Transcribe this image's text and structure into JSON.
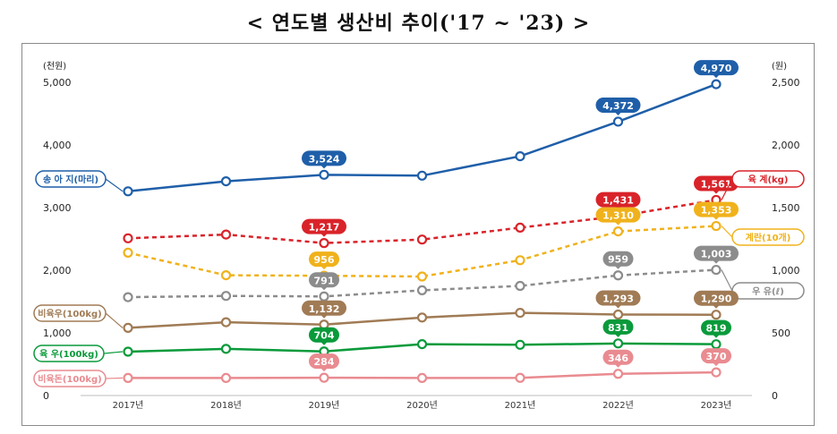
{
  "title": "< 연도별 생산비 추이('17 ~ '23) >",
  "chart_data": {
    "type": "line",
    "x": [
      "2017년",
      "2018년",
      "2019년",
      "2020년",
      "2021년",
      "2022년",
      "2023년"
    ],
    "left_axis": {
      "unit": "(천원)",
      "ticks": [
        "5,000",
        "4,000",
        "3,000",
        "2,000",
        "1,000",
        "0"
      ],
      "ylim": [
        0,
        5000
      ]
    },
    "right_axis": {
      "unit": "(원)",
      "ticks": [
        "2,500",
        "2,000",
        "1,500",
        "1,000",
        "500",
        "0"
      ],
      "ylim": [
        0,
        2500
      ]
    },
    "grid": false,
    "series": [
      {
        "name": "송 아 지(마리)",
        "color": "#1f5fa9",
        "axis": "left",
        "dash": false,
        "values": [
          3260,
          3420,
          3524,
          3510,
          3820,
          4372,
          4970
        ],
        "labels": [
          null,
          null,
          "3,524",
          null,
          null,
          "4,372",
          "4,970"
        ]
      },
      {
        "name": "육 계(kg)",
        "color": "#d9232a",
        "axis": "right",
        "dash": true,
        "values": [
          1255,
          1285,
          1217,
          1245,
          1340,
          1431,
          1561
        ],
        "labels": [
          null,
          null,
          "1,217",
          null,
          null,
          "1,431",
          "1,561"
        ]
      },
      {
        "name": "계란(10개)",
        "color": "#f0b21c",
        "axis": "right",
        "dash": true,
        "values": [
          1140,
          960,
          956,
          950,
          1080,
          1310,
          1353
        ],
        "labels": [
          null,
          null,
          "956",
          null,
          null,
          "1,310",
          "1,353"
        ]
      },
      {
        "name": "우 유(ℓ)",
        "color": "#8c8c8c",
        "axis": "right",
        "dash": true,
        "values": [
          785,
          795,
          791,
          840,
          875,
          959,
          1003
        ],
        "labels": [
          null,
          null,
          "791",
          null,
          null,
          "959",
          "1,003"
        ]
      },
      {
        "name": "비육우(100kg)",
        "color": "#a07b55",
        "axis": "left",
        "dash": false,
        "values": [
          1080,
          1170,
          1132,
          1245,
          1320,
          1293,
          1290
        ],
        "labels": [
          null,
          null,
          "1,132",
          null,
          null,
          "1,293",
          "1,290"
        ]
      },
      {
        "name": "육 우(100kg)",
        "color": "#0a9a3b",
        "axis": "left",
        "dash": false,
        "values": [
          700,
          745,
          704,
          820,
          810,
          831,
          819
        ],
        "labels": [
          null,
          null,
          "704",
          null,
          null,
          "831",
          "819"
        ]
      },
      {
        "name": "비육돈(100kg)",
        "color": "#e98b90",
        "axis": "left",
        "dash": false,
        "values": [
          280,
          280,
          284,
          280,
          282,
          346,
          370
        ],
        "labels": [
          null,
          null,
          "284",
          null,
          null,
          "346",
          "370"
        ]
      }
    ]
  }
}
